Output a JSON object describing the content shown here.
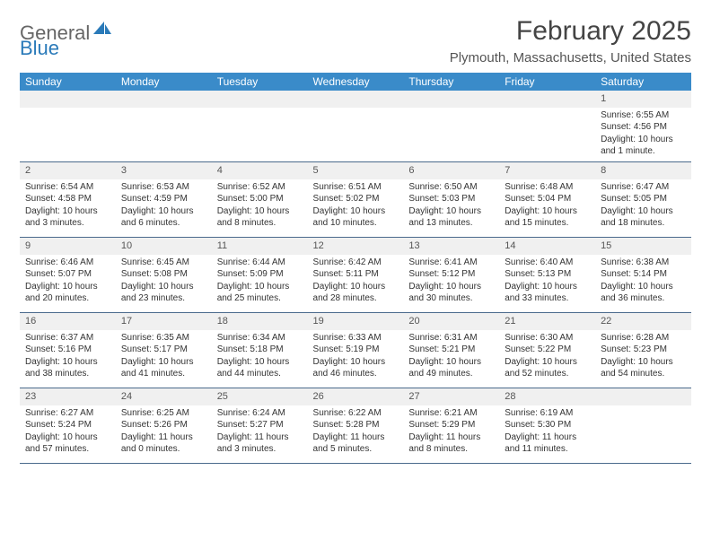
{
  "logo": {
    "text_general": "General",
    "text_blue": "Blue",
    "icon_color": "#2a7ab9"
  },
  "title": "February 2025",
  "subtitle": "Plymouth, Massachusetts, United States",
  "colors": {
    "header_bg": "#3a8bc9",
    "header_text": "#ffffff",
    "daynum_bg": "#f0f0f0",
    "rule": "#4a6a8c",
    "text": "#333333",
    "logo_gray": "#666666",
    "logo_blue": "#2a7ab9"
  },
  "typography": {
    "title_fontsize": 30,
    "subtitle_fontsize": 15,
    "header_fontsize": 12,
    "daynum_fontsize": 11,
    "body_fontsize": 10
  },
  "weekdays": [
    "Sunday",
    "Monday",
    "Tuesday",
    "Wednesday",
    "Thursday",
    "Friday",
    "Saturday"
  ],
  "weeks": [
    [
      null,
      null,
      null,
      null,
      null,
      null,
      {
        "n": "1",
        "sunrise": "Sunrise: 6:55 AM",
        "sunset": "Sunset: 4:56 PM",
        "dl1": "Daylight: 10 hours",
        "dl2": "and 1 minute."
      }
    ],
    [
      {
        "n": "2",
        "sunrise": "Sunrise: 6:54 AM",
        "sunset": "Sunset: 4:58 PM",
        "dl1": "Daylight: 10 hours",
        "dl2": "and 3 minutes."
      },
      {
        "n": "3",
        "sunrise": "Sunrise: 6:53 AM",
        "sunset": "Sunset: 4:59 PM",
        "dl1": "Daylight: 10 hours",
        "dl2": "and 6 minutes."
      },
      {
        "n": "4",
        "sunrise": "Sunrise: 6:52 AM",
        "sunset": "Sunset: 5:00 PM",
        "dl1": "Daylight: 10 hours",
        "dl2": "and 8 minutes."
      },
      {
        "n": "5",
        "sunrise": "Sunrise: 6:51 AM",
        "sunset": "Sunset: 5:02 PM",
        "dl1": "Daylight: 10 hours",
        "dl2": "and 10 minutes."
      },
      {
        "n": "6",
        "sunrise": "Sunrise: 6:50 AM",
        "sunset": "Sunset: 5:03 PM",
        "dl1": "Daylight: 10 hours",
        "dl2": "and 13 minutes."
      },
      {
        "n": "7",
        "sunrise": "Sunrise: 6:48 AM",
        "sunset": "Sunset: 5:04 PM",
        "dl1": "Daylight: 10 hours",
        "dl2": "and 15 minutes."
      },
      {
        "n": "8",
        "sunrise": "Sunrise: 6:47 AM",
        "sunset": "Sunset: 5:05 PM",
        "dl1": "Daylight: 10 hours",
        "dl2": "and 18 minutes."
      }
    ],
    [
      {
        "n": "9",
        "sunrise": "Sunrise: 6:46 AM",
        "sunset": "Sunset: 5:07 PM",
        "dl1": "Daylight: 10 hours",
        "dl2": "and 20 minutes."
      },
      {
        "n": "10",
        "sunrise": "Sunrise: 6:45 AM",
        "sunset": "Sunset: 5:08 PM",
        "dl1": "Daylight: 10 hours",
        "dl2": "and 23 minutes."
      },
      {
        "n": "11",
        "sunrise": "Sunrise: 6:44 AM",
        "sunset": "Sunset: 5:09 PM",
        "dl1": "Daylight: 10 hours",
        "dl2": "and 25 minutes."
      },
      {
        "n": "12",
        "sunrise": "Sunrise: 6:42 AM",
        "sunset": "Sunset: 5:11 PM",
        "dl1": "Daylight: 10 hours",
        "dl2": "and 28 minutes."
      },
      {
        "n": "13",
        "sunrise": "Sunrise: 6:41 AM",
        "sunset": "Sunset: 5:12 PM",
        "dl1": "Daylight: 10 hours",
        "dl2": "and 30 minutes."
      },
      {
        "n": "14",
        "sunrise": "Sunrise: 6:40 AM",
        "sunset": "Sunset: 5:13 PM",
        "dl1": "Daylight: 10 hours",
        "dl2": "and 33 minutes."
      },
      {
        "n": "15",
        "sunrise": "Sunrise: 6:38 AM",
        "sunset": "Sunset: 5:14 PM",
        "dl1": "Daylight: 10 hours",
        "dl2": "and 36 minutes."
      }
    ],
    [
      {
        "n": "16",
        "sunrise": "Sunrise: 6:37 AM",
        "sunset": "Sunset: 5:16 PM",
        "dl1": "Daylight: 10 hours",
        "dl2": "and 38 minutes."
      },
      {
        "n": "17",
        "sunrise": "Sunrise: 6:35 AM",
        "sunset": "Sunset: 5:17 PM",
        "dl1": "Daylight: 10 hours",
        "dl2": "and 41 minutes."
      },
      {
        "n": "18",
        "sunrise": "Sunrise: 6:34 AM",
        "sunset": "Sunset: 5:18 PM",
        "dl1": "Daylight: 10 hours",
        "dl2": "and 44 minutes."
      },
      {
        "n": "19",
        "sunrise": "Sunrise: 6:33 AM",
        "sunset": "Sunset: 5:19 PM",
        "dl1": "Daylight: 10 hours",
        "dl2": "and 46 minutes."
      },
      {
        "n": "20",
        "sunrise": "Sunrise: 6:31 AM",
        "sunset": "Sunset: 5:21 PM",
        "dl1": "Daylight: 10 hours",
        "dl2": "and 49 minutes."
      },
      {
        "n": "21",
        "sunrise": "Sunrise: 6:30 AM",
        "sunset": "Sunset: 5:22 PM",
        "dl1": "Daylight: 10 hours",
        "dl2": "and 52 minutes."
      },
      {
        "n": "22",
        "sunrise": "Sunrise: 6:28 AM",
        "sunset": "Sunset: 5:23 PM",
        "dl1": "Daylight: 10 hours",
        "dl2": "and 54 minutes."
      }
    ],
    [
      {
        "n": "23",
        "sunrise": "Sunrise: 6:27 AM",
        "sunset": "Sunset: 5:24 PM",
        "dl1": "Daylight: 10 hours",
        "dl2": "and 57 minutes."
      },
      {
        "n": "24",
        "sunrise": "Sunrise: 6:25 AM",
        "sunset": "Sunset: 5:26 PM",
        "dl1": "Daylight: 11 hours",
        "dl2": "and 0 minutes."
      },
      {
        "n": "25",
        "sunrise": "Sunrise: 6:24 AM",
        "sunset": "Sunset: 5:27 PM",
        "dl1": "Daylight: 11 hours",
        "dl2": "and 3 minutes."
      },
      {
        "n": "26",
        "sunrise": "Sunrise: 6:22 AM",
        "sunset": "Sunset: 5:28 PM",
        "dl1": "Daylight: 11 hours",
        "dl2": "and 5 minutes."
      },
      {
        "n": "27",
        "sunrise": "Sunrise: 6:21 AM",
        "sunset": "Sunset: 5:29 PM",
        "dl1": "Daylight: 11 hours",
        "dl2": "and 8 minutes."
      },
      {
        "n": "28",
        "sunrise": "Sunrise: 6:19 AM",
        "sunset": "Sunset: 5:30 PM",
        "dl1": "Daylight: 11 hours",
        "dl2": "and 11 minutes."
      },
      null
    ]
  ]
}
